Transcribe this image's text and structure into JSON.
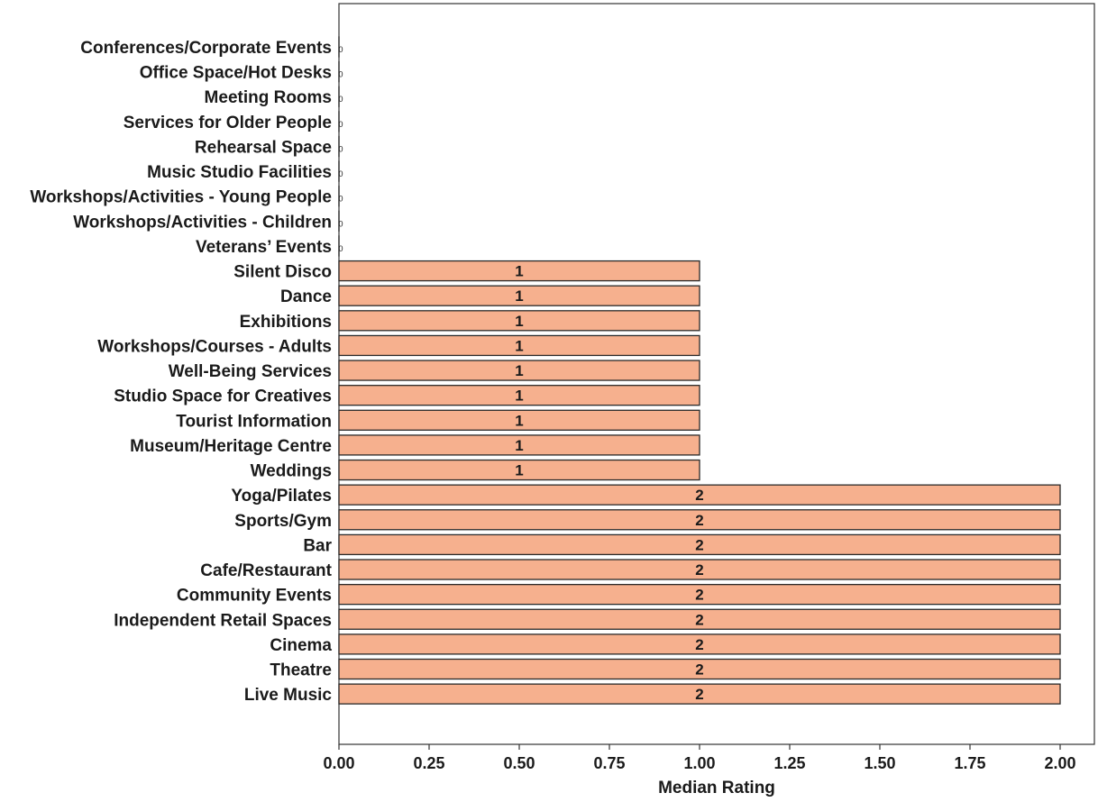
{
  "chart_data": {
    "type": "bar",
    "orientation": "horizontal",
    "categories": [
      "Conferences/Corporate Events",
      "Office Space/Hot Desks",
      "Meeting Rooms",
      "Services for Older People",
      "Rehearsal Space",
      "Music Studio Facilities",
      "Workshops/Activities - Young People",
      "Workshops/Activities - Children",
      "Veterans’ Events",
      "Silent Disco",
      "Dance",
      "Exhibitions",
      "Workshops/Courses - Adults",
      "Well-Being Services",
      "Studio Space for Creatives",
      "Tourist Information",
      "Museum/Heritage Centre",
      "Weddings",
      "Yoga/Pilates",
      "Sports/Gym",
      "Bar",
      "Cafe/Restaurant",
      "Community Events",
      "Independent Retail Spaces",
      "Cinema",
      "Theatre",
      "Live Music"
    ],
    "values": [
      0,
      0,
      0,
      0,
      0,
      0,
      0,
      0,
      0,
      1,
      1,
      1,
      1,
      1,
      1,
      1,
      1,
      1,
      2,
      2,
      2,
      2,
      2,
      2,
      2,
      2,
      2
    ],
    "data_labels": [
      "0",
      "0",
      "0",
      "0",
      "0",
      "0",
      "0",
      "0",
      "0",
      "1",
      "1",
      "1",
      "1",
      "1",
      "1",
      "1",
      "1",
      "1",
      "2",
      "2",
      "2",
      "2",
      "2",
      "2",
      "2",
      "2",
      "2"
    ],
    "title": "",
    "xlabel": "Median Rating",
    "ylabel": "",
    "xlim": [
      0,
      2.08
    ],
    "xticks": [
      0,
      0.25,
      0.5,
      0.75,
      1,
      1.25,
      1.5,
      1.75,
      2
    ],
    "xtick_labels": [
      "0.00",
      "0.25",
      "0.50",
      "0.75",
      "1.00",
      "1.25",
      "1.50",
      "1.75",
      "2.00"
    ],
    "grid": false,
    "colors": {
      "bar_fill": "#f6b08e",
      "bar_edge": "#2a2a2a",
      "axis": "#333333"
    }
  }
}
